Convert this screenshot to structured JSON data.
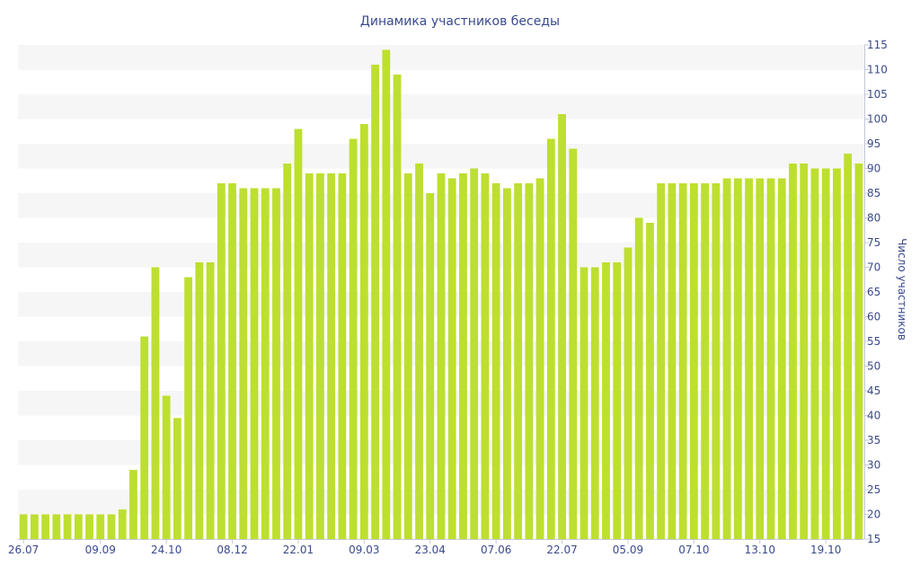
{
  "chart_data": {
    "type": "bar",
    "title": "Динамика участников беседы",
    "ylabel": "Число участников",
    "xlabel": "",
    "ylim": [
      15,
      115
    ],
    "y_ticks": [
      15,
      20,
      25,
      30,
      35,
      40,
      45,
      50,
      55,
      60,
      65,
      70,
      75,
      80,
      85,
      90,
      95,
      100,
      105,
      110,
      115
    ],
    "y_axis_side": "right",
    "x_tick_labels": [
      "26.07",
      "09.09",
      "24.10",
      "08.12",
      "22.01",
      "09.03",
      "23.04",
      "07.06",
      "22.07",
      "05.09",
      "07.10",
      "13.10",
      "19.10"
    ],
    "x_tick_positions": [
      0,
      7,
      13,
      19,
      25,
      31,
      37,
      43,
      49,
      55,
      61,
      67,
      73
    ],
    "bar_color": "#bddf2f",
    "grid": "alternating horizontal bands",
    "values": [
      20,
      20,
      20,
      20,
      20,
      20,
      20,
      20,
      20,
      21,
      29,
      56,
      70,
      44,
      39.5,
      68,
      71,
      71,
      87,
      87,
      86,
      86,
      86,
      86,
      91,
      98,
      89,
      89,
      89,
      89,
      96,
      99,
      111,
      114,
      109,
      89,
      91,
      85,
      89,
      88,
      89,
      90,
      89,
      87,
      86,
      87,
      87,
      88,
      96,
      101,
      94,
      70,
      70,
      71,
      71,
      74,
      80,
      79,
      87,
      87,
      87,
      87,
      87,
      87,
      88,
      88,
      88,
      88,
      88,
      88,
      91,
      91,
      90,
      90,
      90,
      93,
      91
    ]
  }
}
